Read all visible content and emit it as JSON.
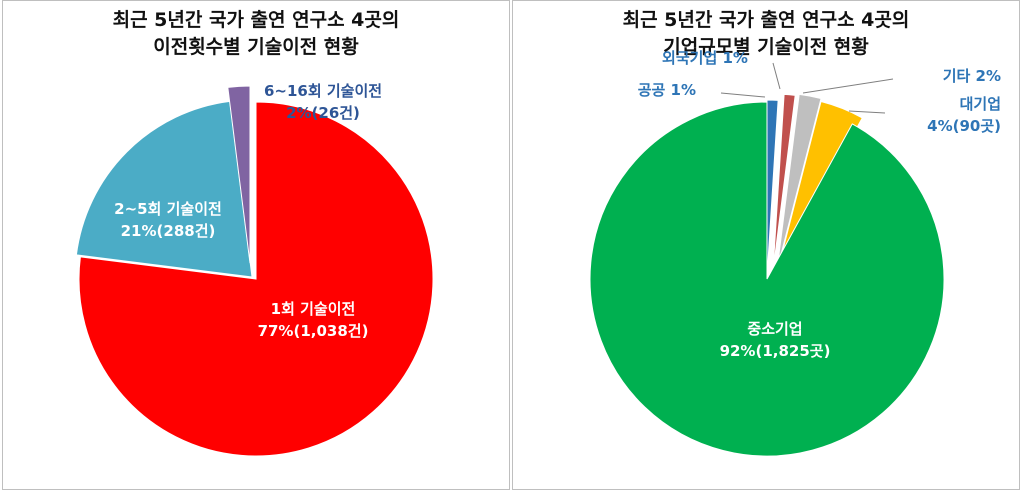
{
  "chart_data": [
    {
      "type": "pie",
      "title": [
        "최근 5년간 국가 출연 연구소 4곳의",
        "이전횟수별 기술이전 현황"
      ],
      "slices": [
        {
          "label_lines": [
            "1회 기술이전",
            "77%(1,038건)"
          ],
          "percent": 77,
          "count": 1038,
          "color": "#ff0000",
          "label_color": "#ffffff"
        },
        {
          "label_lines": [
            "2~5회 기술이전",
            "21%(288건)"
          ],
          "percent": 21,
          "count": 288,
          "color": "#4bacc6",
          "label_color": "#ffffff"
        },
        {
          "label_lines": [
            "6~16회 기술이전",
            "2%(26건)"
          ],
          "percent": 2,
          "count": 26,
          "color": "#8064a2",
          "label_color": "#2e5596"
        }
      ]
    },
    {
      "type": "pie",
      "title": [
        "최근 5년간 국가 출연 연구소 4곳의",
        "기업규모별 기술이전 현황"
      ],
      "slices": [
        {
          "label_lines": [
            "중소기업",
            "92%(1,825곳)"
          ],
          "percent": 92,
          "count": 1825,
          "color": "#00b050",
          "label_color": "#ffffff"
        },
        {
          "label_lines": [
            "공공 1%"
          ],
          "percent": 1,
          "color": "#2e75b6",
          "label_color": "#2e75b6"
        },
        {
          "label_lines": [
            "외국기업 1%"
          ],
          "percent": 1,
          "color": "#c0504d",
          "label_color": "#2e75b6"
        },
        {
          "label_lines": [
            "기타 2%"
          ],
          "percent": 2,
          "color": "#bfbfbf",
          "label_color": "#2e75b6"
        },
        {
          "label_lines": [
            "대기업",
            "4%(90곳)"
          ],
          "percent": 4,
          "count": 90,
          "color": "#ffc000",
          "label_color": "#2e75b6"
        }
      ]
    }
  ]
}
